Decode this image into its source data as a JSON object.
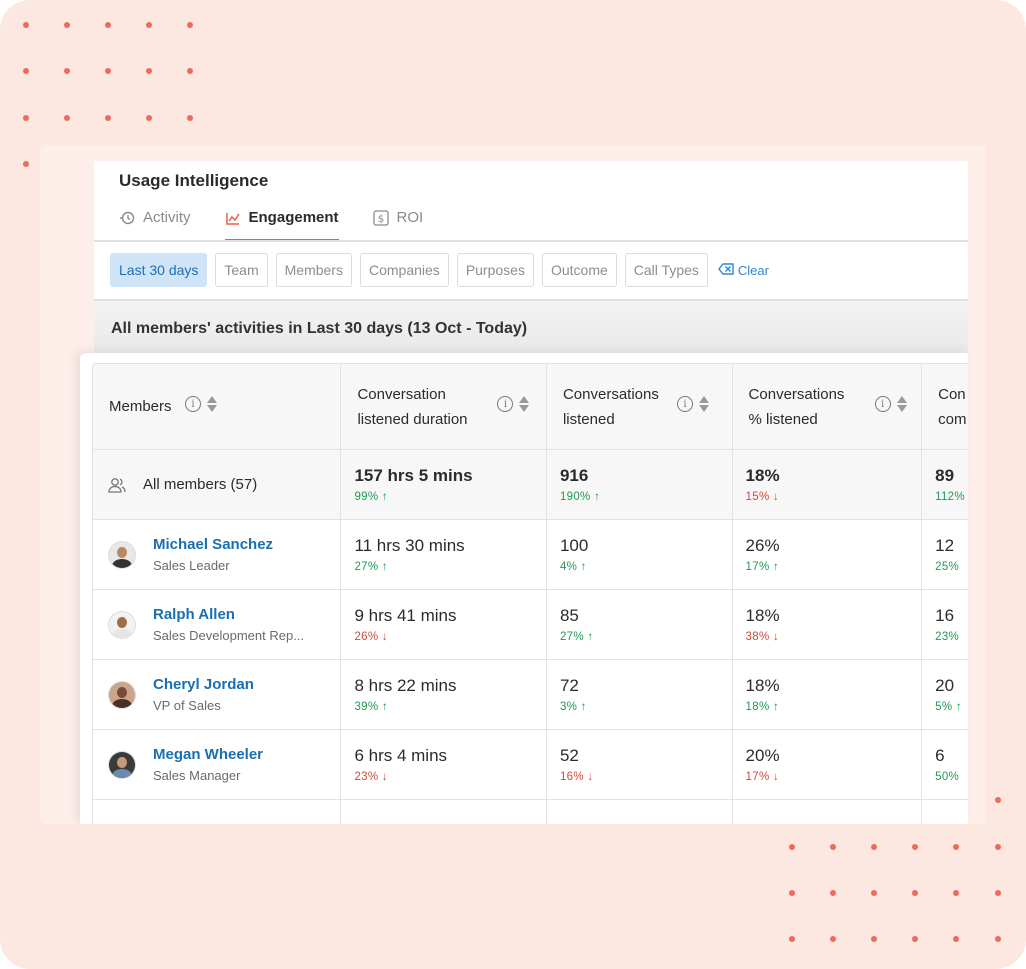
{
  "app": {
    "title": "Usage Intelligence",
    "tabs": [
      {
        "label": "Activity",
        "icon": "history-icon",
        "active": false
      },
      {
        "label": "Engagement",
        "icon": "engagement-icon",
        "active": true
      },
      {
        "label": "ROI",
        "icon": "dollar-icon",
        "active": false
      }
    ]
  },
  "filters": {
    "chips": [
      "Last 30 days",
      "Team",
      "Members",
      "Companies",
      "Purposes",
      "Outcome",
      "Call Types"
    ],
    "active_chip": "Last 30 days",
    "clear_label": "Clear"
  },
  "summary": "All members' activities in Last 30 days (13 Oct - Today)",
  "table": {
    "headers": [
      {
        "line1": "Members",
        "line2": ""
      },
      {
        "line1": "Conversation",
        "line2": "listened duration"
      },
      {
        "line1": "Conversations",
        "line2": "listened"
      },
      {
        "line1": "Conversations",
        "line2": "% listened"
      },
      {
        "line1": "Con",
        "line2": "com"
      }
    ],
    "all_members": {
      "label": "All members (57)",
      "values": [
        {
          "value": "157 hrs 5 mins",
          "delta": "99% ↑",
          "dir": "up"
        },
        {
          "value": "916",
          "delta": "190% ↑",
          "dir": "up"
        },
        {
          "value": "18%",
          "delta": "15% ↓",
          "dir": "down"
        },
        {
          "value": "89",
          "delta": "112%",
          "dir": "up"
        }
      ]
    },
    "rows": [
      {
        "name": "Michael Sanchez",
        "role": "Sales Leader",
        "values": [
          {
            "value": "11 hrs 30 mins",
            "delta": "27% ↑",
            "dir": "up"
          },
          {
            "value": "100",
            "delta": "4% ↑",
            "dir": "up"
          },
          {
            "value": "26%",
            "delta": "17% ↑",
            "dir": "up"
          },
          {
            "value": "12",
            "delta": "25%",
            "dir": "up"
          }
        ]
      },
      {
        "name": "Ralph Allen",
        "role": "Sales Development Rep...",
        "values": [
          {
            "value": "9 hrs 41 mins",
            "delta": "26% ↓",
            "dir": "down"
          },
          {
            "value": "85",
            "delta": "27% ↑",
            "dir": "up"
          },
          {
            "value": "18%",
            "delta": "38% ↓",
            "dir": "down"
          },
          {
            "value": "16",
            "delta": "23%",
            "dir": "up"
          }
        ]
      },
      {
        "name": "Cheryl Jordan",
        "role": "VP of Sales",
        "values": [
          {
            "value": "8 hrs 22 mins",
            "delta": "39% ↑",
            "dir": "up"
          },
          {
            "value": "72",
            "delta": "3% ↑",
            "dir": "up"
          },
          {
            "value": "18%",
            "delta": "18% ↑",
            "dir": "up"
          },
          {
            "value": "20",
            "delta": "5% ↑",
            "dir": "up"
          }
        ]
      },
      {
        "name": "Megan Wheeler",
        "role": "Sales Manager",
        "values": [
          {
            "value": "6 hrs 4 mins",
            "delta": "23% ↓",
            "dir": "down"
          },
          {
            "value": "52",
            "delta": "16% ↓",
            "dir": "down"
          },
          {
            "value": "20%",
            "delta": "17% ↓",
            "dir": "down"
          },
          {
            "value": "6",
            "delta": "50%",
            "dir": "up"
          }
        ]
      }
    ]
  },
  "colors": {
    "accent": "#ef5a4b",
    "link": "#1a6fb0",
    "up": "#1e9a55",
    "down": "#d04a3a",
    "chip_active_bg": "#cfe4f7",
    "background": "#fde7e1"
  }
}
